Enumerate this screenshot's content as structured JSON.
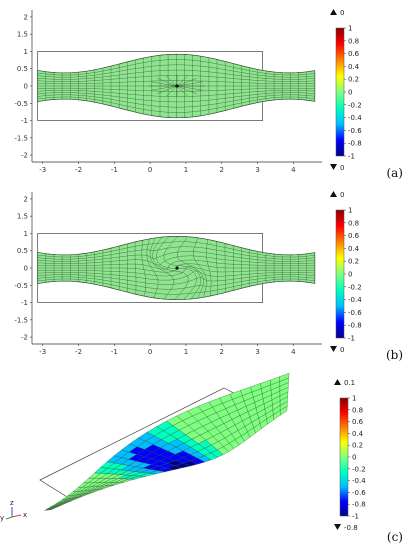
{
  "colors": {
    "surface": "#8fe58f",
    "mesh": "#2d4a2d",
    "box": "#444444",
    "colormap": [
      "#00008b",
      "#0000ff",
      "#00bfff",
      "#00ffbf",
      "#7fff7f",
      "#ffff00",
      "#ff8000",
      "#ff0000",
      "#8b0000"
    ]
  },
  "chart_data": [
    {
      "type": "heatmap",
      "panel_label": "(a)",
      "x_ticks": [
        "-3",
        "-2",
        "-1",
        "0",
        "1",
        "2",
        "3",
        "4"
      ],
      "y_ticks": [
        "2",
        "1.5",
        "1",
        "0.5",
        "0",
        "-0.5",
        "-1",
        "-1.5",
        "-2"
      ],
      "xlim": [
        -3.3,
        4.8
      ],
      "ylim": [
        -2.2,
        2.2
      ],
      "colorbar": {
        "ticks": [
          "1",
          "0.8",
          "0.6",
          "0.4",
          "0.2",
          "0",
          "-0.2",
          "-0.4",
          "-0.6",
          "-0.8",
          "-1"
        ],
        "max_label": "0",
        "min_label": "0",
        "range": [
          -1,
          1
        ]
      },
      "mesh": {
        "vortex_center": [
          0.75,
          0
        ],
        "vortex_strength": 0
      }
    },
    {
      "type": "heatmap",
      "panel_label": "(b)",
      "x_ticks": [
        "-3",
        "-2",
        "-1",
        "0",
        "1",
        "2",
        "3",
        "4"
      ],
      "y_ticks": [
        "2",
        "1.5",
        "1",
        "0.5",
        "0",
        "-0.5",
        "-1",
        "-1.5",
        "-2"
      ],
      "xlim": [
        -3.3,
        4.8
      ],
      "ylim": [
        -2.2,
        2.2
      ],
      "colorbar": {
        "ticks": [
          "1",
          "0.8",
          "0.6",
          "0.4",
          "0.2",
          "0",
          "-0.2",
          "-0.4",
          "-0.6",
          "-0.8",
          "-1"
        ],
        "max_label": "0",
        "min_label": "0",
        "range": [
          -1,
          1
        ]
      },
      "mesh": {
        "vortex_center": [
          0.75,
          0
        ],
        "vortex_strength": 1
      }
    },
    {
      "type": "heatmap",
      "panel_label": "(c)",
      "colorbar": {
        "ticks": [
          "1",
          "0.8",
          "0.6",
          "0.4",
          "0.2",
          "0",
          "-0.2",
          "-0.4",
          "-0.6",
          "-0.8",
          "-1"
        ],
        "max_label": "0.1",
        "min_label": "-0.8",
        "range": [
          -1,
          1
        ]
      },
      "axis_triad": [
        "y",
        "z",
        "x"
      ]
    }
  ]
}
